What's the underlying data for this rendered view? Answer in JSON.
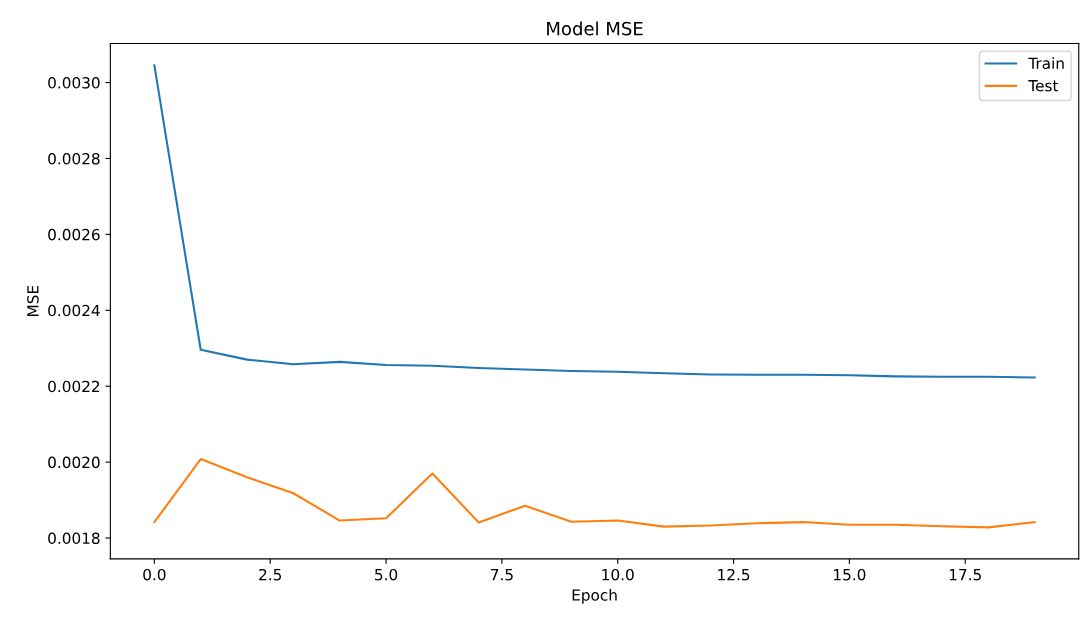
{
  "chart_data": {
    "type": "line",
    "title": "Model MSE",
    "xlabel": "Epoch",
    "ylabel": "MSE",
    "x": [
      0,
      1,
      2,
      3,
      4,
      5,
      6,
      7,
      8,
      9,
      10,
      11,
      12,
      13,
      14,
      15,
      16,
      17,
      18,
      19
    ],
    "series": [
      {
        "name": "Train",
        "color": "#1f77b4",
        "values": [
          0.003045,
          0.002296,
          0.00227,
          0.002258,
          0.002264,
          0.002256,
          0.002254,
          0.002248,
          0.002244,
          0.00224,
          0.002238,
          0.002234,
          0.002231,
          0.00223,
          0.00223,
          0.002229,
          0.002226,
          0.002225,
          0.002225,
          0.002223
        ]
      },
      {
        "name": "Test",
        "color": "#ff7f0e",
        "values": [
          0.001842,
          0.002008,
          0.00196,
          0.001918,
          0.001846,
          0.001852,
          0.00197,
          0.001841,
          0.001885,
          0.001843,
          0.001846,
          0.00183,
          0.001833,
          0.001839,
          0.001842,
          0.001835,
          0.001835,
          0.001831,
          0.001828,
          0.001842
        ]
      }
    ],
    "xlim": [
      -0.95,
      19.95
    ],
    "ylim": [
      0.001745,
      0.003103
    ],
    "xticks": [
      {
        "value": 0,
        "label": "0.0"
      },
      {
        "value": 2.5,
        "label": "2.5"
      },
      {
        "value": 5,
        "label": "5.0"
      },
      {
        "value": 7.5,
        "label": "7.5"
      },
      {
        "value": 10,
        "label": "10.0"
      },
      {
        "value": 12.5,
        "label": "12.5"
      },
      {
        "value": 15,
        "label": "15.0"
      },
      {
        "value": 17.5,
        "label": "17.5"
      }
    ],
    "yticks": [
      {
        "value": 0.0018,
        "label": "0.0018"
      },
      {
        "value": 0.002,
        "label": "0.0020"
      },
      {
        "value": 0.0022,
        "label": "0.0022"
      },
      {
        "value": 0.0024,
        "label": "0.0024"
      },
      {
        "value": 0.0026,
        "label": "0.0026"
      },
      {
        "value": 0.0028,
        "label": "0.0028"
      },
      {
        "value": 0.003,
        "label": "0.0030"
      }
    ],
    "legend": "top right",
    "grid": false
  }
}
